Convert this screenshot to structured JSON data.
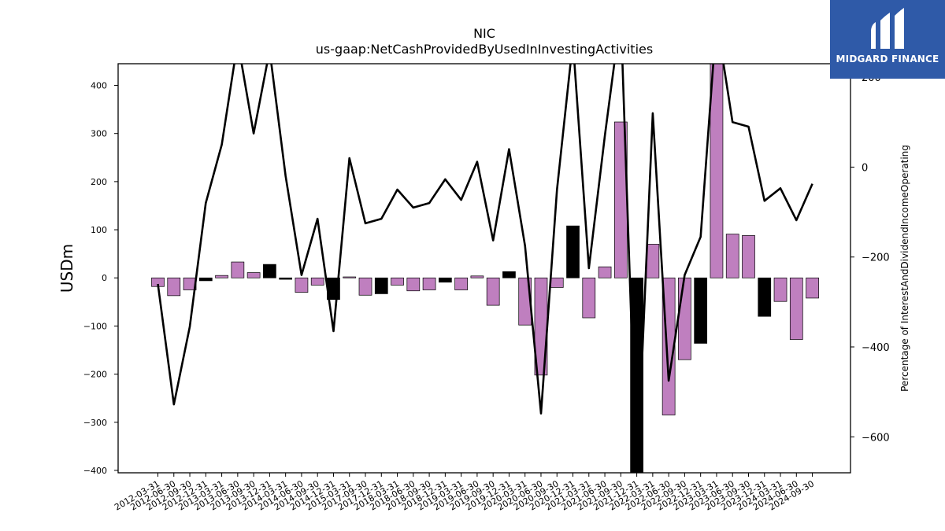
{
  "chart_data": {
    "type": "bar",
    "title": "NIC",
    "subtitle": "us-gaap:NetCashProvidedByUsedInInvestingActivities",
    "ylabel": "USDm",
    "y2label": "Percentage of InterestAndDividendIncomeOperating",
    "ylim": [
      -405,
      445
    ],
    "y2lim": [
      -680,
      230
    ],
    "yticks": [
      -400,
      -300,
      -200,
      -100,
      0,
      100,
      200,
      300,
      400
    ],
    "y2ticks": [
      -600,
      -400,
      -200,
      0,
      200
    ],
    "y2tick_labels": [
      "−600",
      "−400",
      "−200",
      "0",
      "200"
    ],
    "ytick_labels": [
      "−400",
      "−300",
      "−200",
      "−100",
      "0",
      "100",
      "200",
      "300",
      "400"
    ],
    "categories": [
      "2012-03-31",
      "2012-06-30",
      "2012-09-30",
      "2012-12-31",
      "2013-03-31",
      "2013-06-30",
      "2013-09-30",
      "2013-12-31",
      "2014-03-31",
      "2014-06-30",
      "2014-09-30",
      "2014-12-31",
      "2015-03-31",
      "2017-09-30",
      "2017-12-31",
      "2018-03-31",
      "2018-06-30",
      "2018-09-30",
      "2018-12-31",
      "2019-03-31",
      "2019-06-30",
      "2019-09-30",
      "2019-12-31",
      "2020-03-31",
      "2020-06-30",
      "2020-09-30",
      "2020-12-31",
      "2021-03-31",
      "2021-06-30",
      "2021-09-30",
      "2021-12-31",
      "2022-03-31",
      "2022-06-30",
      "2022-09-30",
      "2022-12-31",
      "2023-03-31",
      "2023-06-30",
      "2023-09-30",
      "2023-12-31",
      "2024-03-31",
      "2024-06-30",
      "2024-09-30"
    ],
    "series": [
      {
        "type": "bar",
        "values": [
          -18,
          -37,
          -25,
          -6,
          5,
          33,
          11,
          28,
          -3,
          -30,
          -15,
          -45,
          2,
          -36,
          -33,
          -15,
          -27,
          -25,
          -9,
          -25,
          4,
          -57,
          13,
          -98,
          -202,
          -20,
          108,
          -83,
          23,
          324,
          -405,
          70,
          -285,
          -170,
          -136,
          460,
          91,
          88,
          -80,
          -49,
          -128,
          -42
        ]
      },
      {
        "type": "line",
        "axis": "right",
        "values": [
          -260,
          -528,
          -355,
          -80,
          50,
          280,
          75,
          260,
          -20,
          -240,
          -115,
          -365,
          20,
          -125,
          -115,
          -50,
          -90,
          -80,
          -27,
          -73,
          12,
          -163,
          40,
          -175,
          -548,
          -50,
          280,
          -225,
          70,
          340,
          -700,
          120,
          -475,
          -240,
          -155,
          330,
          100,
          90,
          -75,
          -47,
          -118,
          -37
        ]
      }
    ],
    "bar_colors": [
      "#bf7fbf",
      "#bf7fbf",
      "#bf7fbf",
      "#000000",
      "#bf7fbf",
      "#bf7fbf",
      "#bf7fbf",
      "#000000",
      "#000000",
      "#bf7fbf",
      "#bf7fbf",
      "#000000",
      "#bf7fbf",
      "#bf7fbf",
      "#000000",
      "#bf7fbf",
      "#bf7fbf",
      "#bf7fbf",
      "#000000",
      "#bf7fbf",
      "#bf7fbf",
      "#bf7fbf",
      "#000000",
      "#bf7fbf",
      "#bf7fbf",
      "#bf7fbf",
      "#000000",
      "#bf7fbf",
      "#bf7fbf",
      "#bf7fbf",
      "#000000",
      "#bf7fbf",
      "#bf7fbf",
      "#bf7fbf",
      "#000000",
      "#bf7fbf",
      "#bf7fbf",
      "#bf7fbf",
      "#000000",
      "#bf7fbf",
      "#bf7fbf",
      "#bf7fbf"
    ],
    "line_color": "#000000",
    "grid": false
  },
  "logo": {
    "text": "MIDGARD FINANCE",
    "color": "#2f5aa8"
  }
}
